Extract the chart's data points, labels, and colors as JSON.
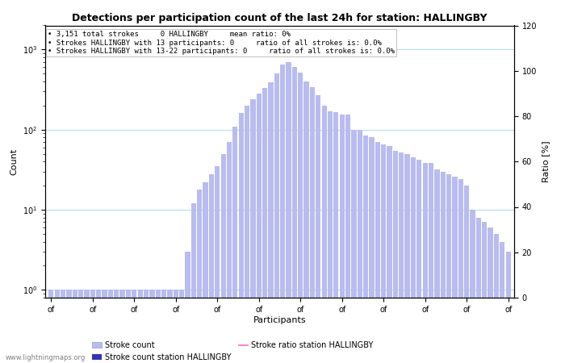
{
  "title": "Detections per participation count of the last 24h for station: HALLINGBY",
  "xlabel": "Participants",
  "ylabel_left": "Count",
  "ylabel_right": "Ratio [%]",
  "annotation_lines": [
    "3,151 total strokes     0 HALLINGBY     mean ratio: 0%",
    "Strokes HALLINGBY with 13 participants: 0     ratio of all strokes is: 0.0%",
    "Strokes HALLINGBY with 13-22 participants: 0     ratio of all strokes is: 0.0%"
  ],
  "bar_values": [
    1,
    1,
    1,
    1,
    1,
    1,
    1,
    1,
    1,
    1,
    1,
    1,
    1,
    1,
    1,
    1,
    1,
    1,
    1,
    1,
    1,
    1,
    1,
    3,
    12,
    18,
    22,
    28,
    35,
    50,
    70,
    110,
    160,
    200,
    240,
    280,
    330,
    390,
    500,
    650,
    700,
    600,
    520,
    400,
    340,
    270,
    200,
    170,
    165,
    155,
    155,
    100,
    100,
    85,
    80,
    70,
    65,
    62,
    55,
    52,
    50,
    45,
    42,
    38,
    38,
    32,
    30,
    28,
    26,
    24,
    20,
    10,
    8,
    7,
    6,
    5,
    4,
    3
  ],
  "bar_color": "#b8bcf0",
  "bar_color_station": "#3333bb",
  "ratio_color": "#ff88cc",
  "ylim_right": [
    0,
    120
  ],
  "yticks_right": [
    0,
    20,
    40,
    60,
    80,
    100,
    120
  ],
  "watermark": "www.lightningmaps.org",
  "title_fontsize": 9,
  "annotation_fontsize": 6.5,
  "tick_fontsize": 7,
  "ylabel_fontsize": 8
}
